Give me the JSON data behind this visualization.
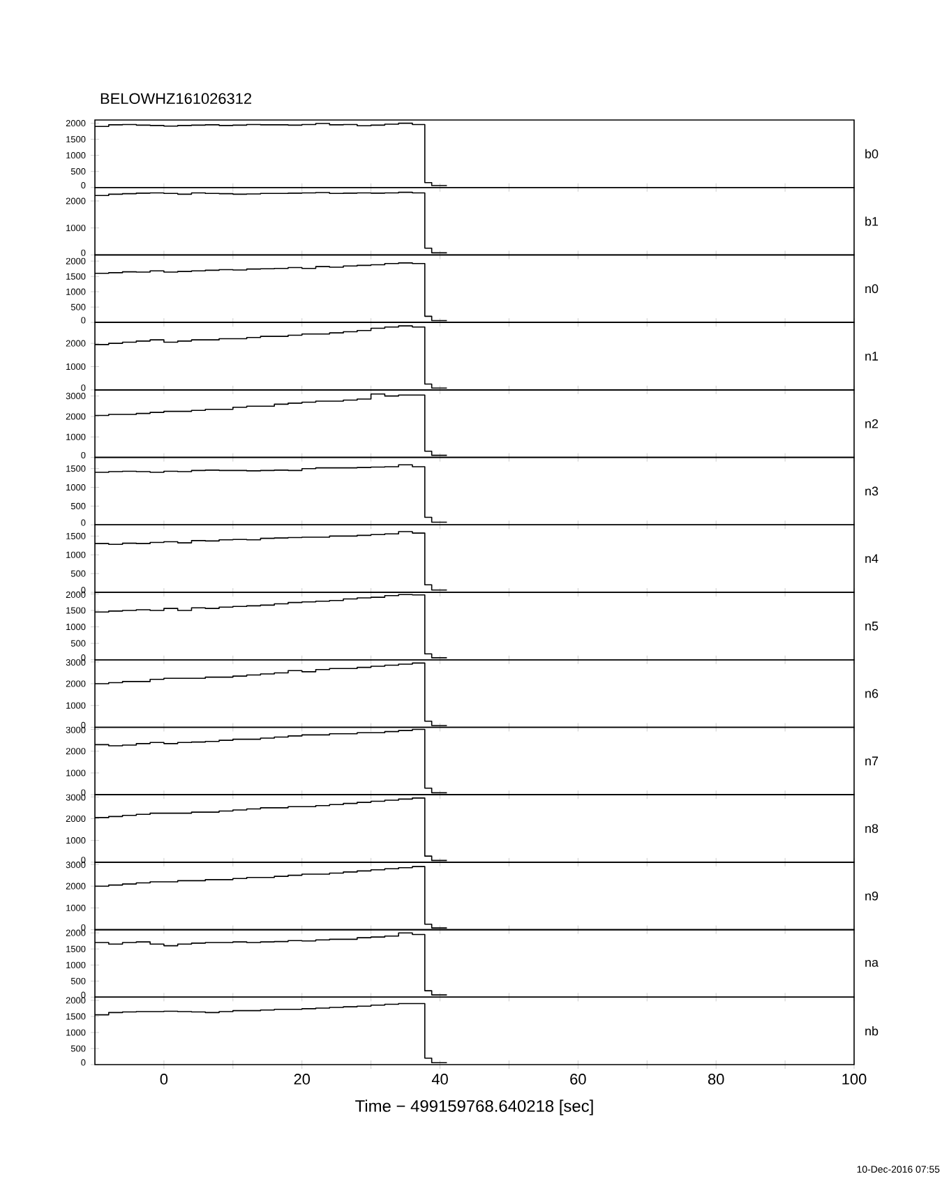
{
  "chart_data": [
    {
      "type": "step",
      "title": "BELOWHZ161026312",
      "ylabel": "b0",
      "color": "#000000",
      "xlim": [
        -10,
        100
      ],
      "ylim": [
        0,
        2100
      ],
      "yticks": [
        0,
        500,
        1000,
        1500,
        2000
      ],
      "xticks": [
        0,
        {
          "value": 10,
          "label": null
        },
        20,
        {
          "value": 30,
          "label": null
        },
        40,
        {
          "value": 50,
          "label": null
        },
        60,
        {
          "value": 70,
          "label": null
        },
        80,
        {
          "value": 90,
          "label": null
        },
        100
      ],
      "tick_labels": "y",
      "x": [
        -10,
        -8,
        -6,
        -4,
        -2,
        0,
        2,
        4,
        6,
        8,
        10,
        12,
        14,
        16,
        18,
        20,
        22,
        24,
        26,
        28,
        30,
        32,
        34,
        36,
        37.8,
        38.8,
        41
      ],
      "values": [
        1900,
        1950,
        1960,
        1940,
        1930,
        1910,
        1930,
        1940,
        1950,
        1930,
        1940,
        1960,
        1950,
        1950,
        1940,
        1960,
        1990,
        1950,
        1960,
        1920,
        1940,
        1970,
        2000,
        1960,
        150,
        60,
        60
      ]
    },
    {
      "type": "step",
      "ylabel": "b1",
      "color": "#000000",
      "xlim": [
        -10,
        100
      ],
      "ylim": [
        0,
        2500
      ],
      "yticks": [
        0,
        1000,
        2000
      ],
      "xticks": [
        0,
        {
          "value": 10,
          "label": null
        },
        20,
        {
          "value": 30,
          "label": null
        },
        40,
        {
          "value": 50,
          "label": null
        },
        60,
        {
          "value": 70,
          "label": null
        },
        80,
        {
          "value": 90,
          "label": null
        },
        100
      ],
      "tick_labels": "y",
      "x": [
        -10,
        -8,
        -6,
        -4,
        -2,
        0,
        2,
        4,
        6,
        8,
        10,
        12,
        14,
        16,
        18,
        20,
        22,
        24,
        26,
        28,
        30,
        32,
        34,
        36,
        37.8,
        38.8,
        41
      ],
      "values": [
        2200,
        2250,
        2270,
        2290,
        2300,
        2280,
        2250,
        2300,
        2280,
        2270,
        2250,
        2260,
        2280,
        2280,
        2290,
        2300,
        2310,
        2280,
        2290,
        2300,
        2290,
        2300,
        2320,
        2300,
        250,
        80,
        80
      ]
    },
    {
      "type": "step",
      "ylabel": "n0",
      "color": "#000000",
      "xlim": [
        -10,
        100
      ],
      "ylim": [
        0,
        2200
      ],
      "yticks": [
        0,
        500,
        1000,
        1500,
        2000
      ],
      "xticks": [
        0,
        {
          "value": 10,
          "label": null
        },
        20,
        {
          "value": 30,
          "label": null
        },
        40,
        {
          "value": 50,
          "label": null
        },
        60,
        {
          "value": 70,
          "label": null
        },
        80,
        {
          "value": 90,
          "label": null
        },
        100
      ],
      "tick_labels": "y",
      "x": [
        -10,
        -8,
        -6,
        -4,
        -2,
        0,
        2,
        4,
        6,
        8,
        10,
        12,
        14,
        16,
        18,
        20,
        22,
        24,
        26,
        28,
        30,
        32,
        34,
        36,
        37.8,
        38.8,
        41
      ],
      "values": [
        1600,
        1620,
        1650,
        1640,
        1680,
        1640,
        1660,
        1680,
        1700,
        1720,
        1710,
        1740,
        1750,
        1760,
        1790,
        1760,
        1820,
        1800,
        1840,
        1860,
        1880,
        1920,
        1940,
        1920,
        200,
        60,
        60
      ]
    },
    {
      "type": "step",
      "ylabel": "n1",
      "color": "#000000",
      "xlim": [
        -10,
        100
      ],
      "ylim": [
        0,
        2900
      ],
      "yticks": [
        0,
        1000,
        2000
      ],
      "xticks": [
        0,
        {
          "value": 10,
          "label": null
        },
        20,
        {
          "value": 30,
          "label": null
        },
        40,
        {
          "value": 50,
          "label": null
        },
        60,
        {
          "value": 70,
          "label": null
        },
        80,
        {
          "value": 90,
          "label": null
        },
        100
      ],
      "tick_labels": "y",
      "x": [
        -10,
        -8,
        -6,
        -4,
        -2,
        0,
        2,
        4,
        6,
        8,
        10,
        12,
        14,
        16,
        18,
        20,
        22,
        24,
        26,
        28,
        30,
        32,
        34,
        36,
        37.8,
        38.8,
        41
      ],
      "values": [
        1950,
        2000,
        2050,
        2100,
        2150,
        2050,
        2100,
        2150,
        2150,
        2200,
        2200,
        2250,
        2300,
        2300,
        2350,
        2400,
        2400,
        2450,
        2500,
        2550,
        2650,
        2700,
        2750,
        2700,
        250,
        80,
        80
      ]
    },
    {
      "type": "step",
      "ylabel": "n2",
      "color": "#000000",
      "xlim": [
        -10,
        100
      ],
      "ylim": [
        0,
        3300
      ],
      "yticks": [
        0,
        1000,
        2000,
        3000
      ],
      "xticks": [
        0,
        {
          "value": 10,
          "label": null
        },
        20,
        {
          "value": 30,
          "label": null
        },
        40,
        {
          "value": 50,
          "label": null
        },
        60,
        {
          "value": 70,
          "label": null
        },
        80,
        {
          "value": 90,
          "label": null
        },
        100
      ],
      "tick_labels": "y",
      "x": [
        -10,
        -8,
        -6,
        -4,
        -2,
        0,
        2,
        4,
        6,
        8,
        10,
        12,
        14,
        16,
        18,
        20,
        22,
        24,
        26,
        28,
        30,
        32,
        34,
        36,
        37.8,
        38.8,
        41
      ],
      "values": [
        2050,
        2100,
        2100,
        2150,
        2200,
        2250,
        2250,
        2300,
        2350,
        2350,
        2450,
        2500,
        2500,
        2600,
        2650,
        2700,
        2750,
        2750,
        2800,
        2850,
        3100,
        3000,
        3050,
        3050,
        300,
        100,
        100
      ]
    },
    {
      "type": "step",
      "ylabel": "n3",
      "color": "#000000",
      "xlim": [
        -10,
        100
      ],
      "ylim": [
        0,
        1800
      ],
      "yticks": [
        0,
        500,
        1000,
        1500
      ],
      "xticks": [
        0,
        {
          "value": 10,
          "label": null
        },
        20,
        {
          "value": 30,
          "label": null
        },
        40,
        {
          "value": 50,
          "label": null
        },
        60,
        {
          "value": 70,
          "label": null
        },
        80,
        {
          "value": 90,
          "label": null
        },
        100
      ],
      "tick_labels": "y",
      "x": [
        -10,
        -8,
        -6,
        -4,
        -2,
        0,
        2,
        4,
        6,
        8,
        10,
        12,
        14,
        16,
        18,
        20,
        22,
        24,
        26,
        28,
        30,
        32,
        34,
        36,
        37.8,
        38.8,
        41
      ],
      "values": [
        1400,
        1420,
        1430,
        1420,
        1400,
        1430,
        1420,
        1450,
        1460,
        1450,
        1450,
        1440,
        1450,
        1460,
        1450,
        1500,
        1520,
        1520,
        1520,
        1530,
        1540,
        1550,
        1600,
        1550,
        200,
        70,
        70
      ]
    },
    {
      "type": "step",
      "ylabel": "n4",
      "color": "#000000",
      "xlim": [
        -10,
        100
      ],
      "ylim": [
        0,
        1800
      ],
      "yticks": [
        0,
        500,
        1000,
        1500
      ],
      "xticks": [
        0,
        {
          "value": 10,
          "label": null
        },
        20,
        {
          "value": 30,
          "label": null
        },
        40,
        {
          "value": 50,
          "label": null
        },
        60,
        {
          "value": 70,
          "label": null
        },
        80,
        {
          "value": 90,
          "label": null
        },
        100
      ],
      "tick_labels": "y",
      "x": [
        -10,
        -8,
        -6,
        -4,
        -2,
        0,
        2,
        4,
        6,
        8,
        10,
        12,
        14,
        16,
        18,
        20,
        22,
        24,
        26,
        28,
        30,
        32,
        34,
        36,
        37.8,
        38.8,
        41
      ],
      "values": [
        1300,
        1280,
        1310,
        1300,
        1330,
        1350,
        1320,
        1380,
        1370,
        1400,
        1410,
        1400,
        1440,
        1450,
        1460,
        1470,
        1470,
        1500,
        1500,
        1520,
        1540,
        1560,
        1620,
        1580,
        200,
        60,
        60
      ]
    },
    {
      "type": "step",
      "ylabel": "n5",
      "color": "#000000",
      "xlim": [
        -10,
        100
      ],
      "ylim": [
        0,
        2050
      ],
      "yticks": [
        0,
        500,
        1000,
        1500,
        2000
      ],
      "xticks": [
        0,
        {
          "value": 10,
          "label": null
        },
        20,
        {
          "value": 30,
          "label": null
        },
        40,
        {
          "value": 50,
          "label": null
        },
        60,
        {
          "value": 70,
          "label": null
        },
        80,
        {
          "value": 90,
          "label": null
        },
        100
      ],
      "tick_labels": "y",
      "x": [
        -10,
        -8,
        -6,
        -4,
        -2,
        0,
        2,
        4,
        6,
        8,
        10,
        12,
        14,
        16,
        18,
        20,
        22,
        24,
        26,
        28,
        30,
        32,
        34,
        36,
        37.8,
        38.8,
        41
      ],
      "values": [
        1450,
        1480,
        1500,
        1520,
        1500,
        1560,
        1500,
        1580,
        1560,
        1600,
        1620,
        1640,
        1660,
        1700,
        1740,
        1760,
        1780,
        1800,
        1850,
        1880,
        1900,
        1950,
        1980,
        1970,
        180,
        60,
        60
      ]
    },
    {
      "type": "step",
      "ylabel": "n6",
      "color": "#000000",
      "xlim": [
        -10,
        100
      ],
      "ylim": [
        0,
        3100
      ],
      "yticks": [
        0,
        1000,
        2000,
        3000
      ],
      "xticks": [
        0,
        {
          "value": 10,
          "label": null
        },
        20,
        {
          "value": 30,
          "label": null
        },
        40,
        {
          "value": 50,
          "label": null
        },
        60,
        {
          "value": 70,
          "label": null
        },
        80,
        {
          "value": 90,
          "label": null
        },
        100
      ],
      "tick_labels": "y",
      "x": [
        -10,
        -8,
        -6,
        -4,
        -2,
        0,
        2,
        4,
        6,
        8,
        10,
        12,
        14,
        16,
        18,
        20,
        22,
        24,
        26,
        28,
        30,
        32,
        34,
        36,
        37.8,
        38.8,
        41
      ],
      "values": [
        2000,
        2050,
        2100,
        2100,
        2200,
        2250,
        2250,
        2250,
        2300,
        2300,
        2350,
        2400,
        2450,
        2500,
        2600,
        2550,
        2650,
        2700,
        2700,
        2750,
        2800,
        2850,
        2900,
        2950,
        280,
        80,
        80
      ]
    },
    {
      "type": "step",
      "ylabel": "n7",
      "color": "#000000",
      "xlim": [
        -10,
        100
      ],
      "ylim": [
        0,
        3100
      ],
      "yticks": [
        0,
        1000,
        2000,
        3000
      ],
      "xticks": [
        0,
        {
          "value": 10,
          "label": null
        },
        20,
        {
          "value": 30,
          "label": null
        },
        40,
        {
          "value": 50,
          "label": null
        },
        60,
        {
          "value": 70,
          "label": null
        },
        80,
        {
          "value": 90,
          "label": null
        },
        100
      ],
      "tick_labels": "y",
      "x": [
        -10,
        -8,
        -6,
        -4,
        -2,
        0,
        2,
        4,
        6,
        8,
        10,
        12,
        14,
        16,
        18,
        20,
        22,
        24,
        26,
        28,
        30,
        32,
        34,
        36,
        37.8,
        38.8,
        41
      ],
      "values": [
        2300,
        2250,
        2280,
        2350,
        2400,
        2350,
        2400,
        2420,
        2450,
        2500,
        2550,
        2550,
        2600,
        2650,
        2700,
        2750,
        2750,
        2800,
        2800,
        2850,
        2850,
        2900,
        2950,
        3000,
        300,
        90,
        90
      ]
    },
    {
      "type": "step",
      "ylabel": "n8",
      "color": "#000000",
      "xlim": [
        -10,
        100
      ],
      "ylim": [
        0,
        3100
      ],
      "yticks": [
        0,
        1000,
        2000,
        3000
      ],
      "xticks": [
        0,
        {
          "value": 10,
          "label": null
        },
        20,
        {
          "value": 30,
          "label": null
        },
        40,
        {
          "value": 50,
          "label": null
        },
        60,
        {
          "value": 70,
          "label": null
        },
        80,
        {
          "value": 90,
          "label": null
        },
        100
      ],
      "tick_labels": "y",
      "x": [
        -10,
        -8,
        -6,
        -4,
        -2,
        0,
        2,
        4,
        6,
        8,
        10,
        12,
        14,
        16,
        18,
        20,
        22,
        24,
        26,
        28,
        30,
        32,
        34,
        36,
        37.8,
        38.8,
        41
      ],
      "values": [
        2050,
        2100,
        2150,
        2200,
        2250,
        2250,
        2250,
        2300,
        2300,
        2350,
        2400,
        2450,
        2500,
        2500,
        2550,
        2550,
        2600,
        2650,
        2700,
        2750,
        2800,
        2850,
        2900,
        2950,
        280,
        80,
        80
      ]
    },
    {
      "type": "step",
      "ylabel": "n9",
      "color": "#000000",
      "xlim": [
        -10,
        100
      ],
      "ylim": [
        0,
        3100
      ],
      "yticks": [
        0,
        1000,
        2000,
        3000
      ],
      "xticks": [
        0,
        {
          "value": 10,
          "label": null
        },
        20,
        {
          "value": 30,
          "label": null
        },
        40,
        {
          "value": 50,
          "label": null
        },
        60,
        {
          "value": 70,
          "label": null
        },
        80,
        {
          "value": 90,
          "label": null
        },
        100
      ],
      "tick_labels": "y",
      "x": [
        -10,
        -8,
        -6,
        -4,
        -2,
        0,
        2,
        4,
        6,
        8,
        10,
        12,
        14,
        16,
        18,
        20,
        22,
        24,
        26,
        28,
        30,
        32,
        34,
        36,
        37.8,
        38.8,
        41
      ],
      "values": [
        2000,
        2050,
        2100,
        2150,
        2200,
        2200,
        2250,
        2250,
        2300,
        2300,
        2350,
        2400,
        2400,
        2450,
        2500,
        2550,
        2550,
        2600,
        2650,
        2700,
        2750,
        2800,
        2850,
        2900,
        250,
        80,
        80
      ]
    },
    {
      "type": "step",
      "ylabel": "na",
      "color": "#000000",
      "xlim": [
        -10,
        100
      ],
      "ylim": [
        0,
        2100
      ],
      "yticks": [
        0,
        500,
        1000,
        1500,
        2000
      ],
      "xticks": [
        0,
        {
          "value": 10,
          "label": null
        },
        20,
        {
          "value": 30,
          "label": null
        },
        40,
        {
          "value": 50,
          "label": null
        },
        60,
        {
          "value": 70,
          "label": null
        },
        80,
        {
          "value": 90,
          "label": null
        },
        100
      ],
      "tick_labels": "y",
      "x": [
        -10,
        -8,
        -6,
        -4,
        -2,
        0,
        2,
        4,
        6,
        8,
        10,
        12,
        14,
        16,
        18,
        20,
        22,
        24,
        26,
        28,
        30,
        32,
        34,
        36,
        37.8,
        38.8,
        41
      ],
      "values": [
        1700,
        1650,
        1700,
        1720,
        1650,
        1600,
        1650,
        1680,
        1700,
        1700,
        1720,
        1700,
        1720,
        1730,
        1760,
        1750,
        1780,
        1800,
        1800,
        1850,
        1870,
        1900,
        2000,
        1950,
        200,
        70,
        70
      ]
    },
    {
      "type": "step",
      "ylabel": "nb",
      "xlabel": "Time − 499159768.640218 [sec]",
      "annotations": [
        "10-Dec-2016 07:55"
      ],
      "color": "#000000",
      "xlim": [
        -10,
        100
      ],
      "ylim": [
        0,
        2100
      ],
      "yticks": [
        0,
        500,
        1000,
        1500,
        2000
      ],
      "xticks": [
        0,
        {
          "value": 10,
          "label": null
        },
        20,
        {
          "value": 30,
          "label": null
        },
        40,
        {
          "value": 50,
          "label": null
        },
        60,
        {
          "value": 70,
          "label": null
        },
        80,
        {
          "value": 90,
          "label": null
        },
        100
      ],
      "x": [
        -10,
        -8,
        -6,
        -4,
        -2,
        0,
        2,
        4,
        6,
        8,
        10,
        12,
        14,
        16,
        18,
        20,
        22,
        24,
        26,
        28,
        30,
        32,
        34,
        36,
        37.8,
        38.8,
        41
      ],
      "values": [
        1550,
        1620,
        1640,
        1650,
        1650,
        1660,
        1650,
        1640,
        1620,
        1650,
        1680,
        1680,
        1700,
        1720,
        1720,
        1740,
        1760,
        1780,
        1800,
        1820,
        1850,
        1880,
        1900,
        1900,
        200,
        60,
        60
      ]
    }
  ]
}
